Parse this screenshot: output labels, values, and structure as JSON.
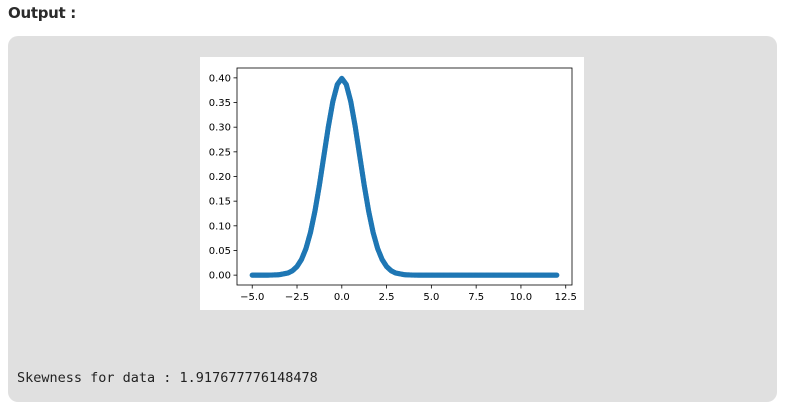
{
  "heading": "Output :",
  "console_text": "Skewness for data : 1.917677776148478",
  "chart_data": {
    "type": "scatter",
    "title": "",
    "xlabel": "",
    "ylabel": "",
    "xlim": [
      -5.85,
      12.85
    ],
    "ylim": [
      -0.02,
      0.42
    ],
    "x_ticks": [
      -5.0,
      -2.5,
      0.0,
      2.5,
      5.0,
      7.5,
      10.0,
      12.5
    ],
    "x_tick_labels": [
      "−5.0",
      "−2.5",
      "0.0",
      "2.5",
      "5.0",
      "7.5",
      "10.0",
      "12.5"
    ],
    "y_ticks": [
      0.0,
      0.05,
      0.1,
      0.15,
      0.2,
      0.25,
      0.3,
      0.35,
      0.4
    ],
    "y_tick_labels": [
      "0.00",
      "0.05",
      "0.10",
      "0.15",
      "0.20",
      "0.25",
      "0.30",
      "0.35",
      "0.40"
    ],
    "grid": false,
    "series": [
      {
        "color": "#1f77b4",
        "x": [
          -5.0,
          -4.5,
          -4.0,
          -3.5,
          -3.0,
          -2.75,
          -2.5,
          -2.25,
          -2.0,
          -1.75,
          -1.5,
          -1.25,
          -1.0,
          -0.75,
          -0.5,
          -0.25,
          0.0,
          0.25,
          0.5,
          0.75,
          1.0,
          1.25,
          1.5,
          1.75,
          2.0,
          2.25,
          2.5,
          2.75,
          3.0,
          3.5,
          4.0,
          5.0,
          6.0,
          7.0,
          8.0,
          9.0,
          10.0,
          11.0,
          12.0
        ],
        "y": [
          0.0,
          0.0,
          0.0001,
          0.0009,
          0.0044,
          0.0091,
          0.0175,
          0.0317,
          0.054,
          0.0863,
          0.1295,
          0.1826,
          0.242,
          0.3011,
          0.3521,
          0.3867,
          0.3989,
          0.3867,
          0.3521,
          0.3011,
          0.242,
          0.1826,
          0.1295,
          0.0863,
          0.054,
          0.0317,
          0.0175,
          0.0091,
          0.0044,
          0.0009,
          0.0001,
          0.0,
          0.0,
          0.0,
          0.0,
          0.0,
          0.0,
          0.0,
          0.0
        ]
      }
    ]
  }
}
